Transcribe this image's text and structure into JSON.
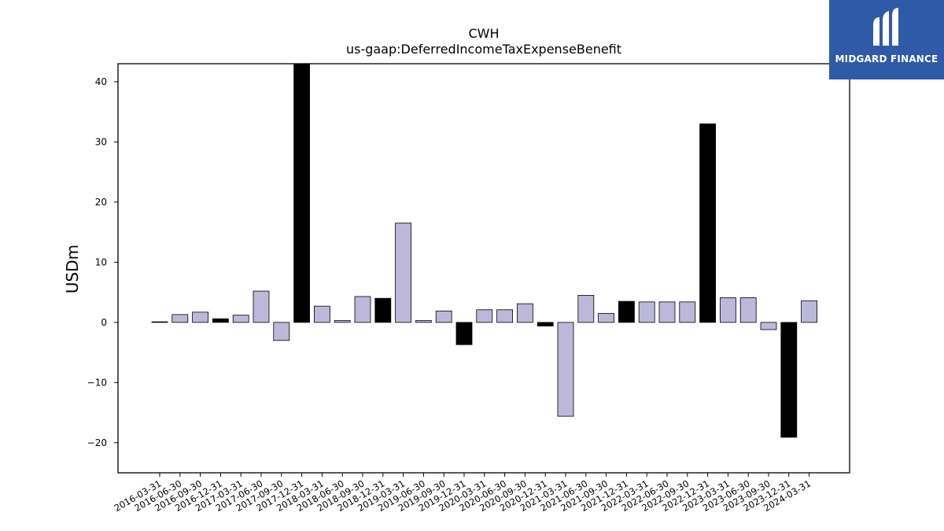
{
  "logo": {
    "text": "MIDGARD FINANCE",
    "background": "#2f5aa8"
  },
  "chart_data": {
    "type": "bar",
    "title": "CWH",
    "subtitle": "us-gaap:DeferredIncomeTaxExpenseBenefit",
    "ylabel": "USDm",
    "xlabel": "",
    "ylim": [
      -25,
      43
    ],
    "yticks": [
      -20,
      -10,
      0,
      10,
      20,
      30,
      40
    ],
    "grid": false,
    "colors": {
      "quarterly": "#bcb8d9",
      "annual": "#000000",
      "edge": "#000000"
    },
    "categories": [
      "2016-03-31",
      "2016-06-30",
      "2016-09-30",
      "2016-12-31",
      "2017-03-31",
      "2017-06-30",
      "2017-09-30",
      "2017-12-31",
      "2018-03-31",
      "2018-06-30",
      "2018-09-30",
      "2018-12-31",
      "2019-03-31",
      "2019-06-30",
      "2019-09-30",
      "2019-12-31",
      "2020-03-31",
      "2020-06-30",
      "2020-09-30",
      "2020-12-31",
      "2021-03-31",
      "2021-06-30",
      "2021-09-30",
      "2021-12-31",
      "2022-03-31",
      "2022-06-30",
      "2022-09-30",
      "2022-12-31",
      "2023-03-31",
      "2023-06-30",
      "2023-09-30",
      "2023-12-31",
      "2024-03-31"
    ],
    "values": [
      0.1,
      1.3,
      1.7,
      0.6,
      1.2,
      5.2,
      -3.0,
      43.0,
      2.7,
      0.3,
      4.3,
      4.0,
      16.5,
      0.3,
      1.9,
      -3.7,
      2.1,
      2.1,
      3.1,
      -0.6,
      -15.6,
      4.5,
      1.5,
      3.5,
      3.4,
      3.4,
      3.4,
      33.0,
      4.1,
      4.1,
      -1.2,
      -19.1,
      3.6
    ],
    "annual_flags": [
      true,
      false,
      false,
      true,
      false,
      false,
      false,
      true,
      false,
      false,
      false,
      true,
      false,
      false,
      false,
      true,
      false,
      false,
      false,
      true,
      false,
      false,
      false,
      true,
      false,
      false,
      false,
      true,
      false,
      false,
      false,
      true,
      false
    ]
  }
}
